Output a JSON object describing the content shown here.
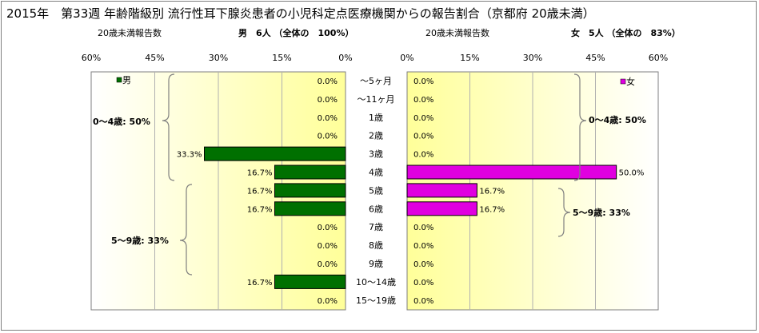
{
  "title": "2015年　第33週 年齢階級別 流行性耳下腺炎患者の小児科定点医療機関からの報告割合（京都府 20歳未満）",
  "male": {
    "count_label": "20歳未満報告数",
    "summary": "男　6人 （全体の　100%）",
    "legend": "男",
    "bar_color": "#007000",
    "bracket_labels": [
      {
        "text": "0～4歳: 50%"
      },
      {
        "text": "5～9歳: 33%"
      }
    ]
  },
  "female": {
    "count_label": "20歳未満報告数",
    "summary": "女　5人 （全体の　83%）",
    "legend": "女",
    "bar_color": "#e000e0",
    "bracket_labels": [
      {
        "text": "0～4歳: 50%"
      },
      {
        "text": "5～9歳: 33%"
      }
    ]
  },
  "axis": {
    "male_ticks": [
      "60%",
      "45%",
      "30%",
      "15%",
      "0%"
    ],
    "female_ticks": [
      "0%",
      "15%",
      "30%",
      "45%",
      "60%"
    ]
  },
  "chart_data": {
    "type": "bar",
    "orientation": "horizontal-population-pyramid",
    "title": "2015年　第33週 年齢階級別 流行性耳下腺炎患者の小児科定点医療機関からの報告割合（京都府 20歳未満）",
    "categories": [
      "～5ヶ月",
      "～11ヶ月",
      "1歳",
      "2歳",
      "3歳",
      "4歳",
      "5歳",
      "6歳",
      "7歳",
      "8歳",
      "9歳",
      "10～14歳",
      "15～19歳"
    ],
    "series": [
      {
        "name": "男",
        "values": [
          0.0,
          0.0,
          0.0,
          0.0,
          33.3,
          16.7,
          16.7,
          16.7,
          0.0,
          0.0,
          0.0,
          16.7,
          0.0
        ],
        "labels": [
          "0.0%",
          "0.0%",
          "0.0%",
          "0.0%",
          "33.3%",
          "16.7%",
          "16.7%",
          "16.7%",
          "0.0%",
          "0.0%",
          "0.0%",
          "16.7%",
          "0.0%"
        ]
      },
      {
        "name": "女",
        "values": [
          0.0,
          0.0,
          0.0,
          0.0,
          0.0,
          50.0,
          16.7,
          16.7,
          0.0,
          0.0,
          0.0,
          0.0,
          0.0
        ],
        "labels": [
          "0.0%",
          "0.0%",
          "0.0%",
          "0.0%",
          "0.0%",
          "50.0%",
          "16.7%",
          "16.7%",
          "0.0%",
          "0.0%",
          "0.0%",
          "0.0%",
          "0.0%"
        ]
      }
    ],
    "xlim": [
      0,
      60
    ],
    "grid": true,
    "legend": "top of each panel"
  }
}
